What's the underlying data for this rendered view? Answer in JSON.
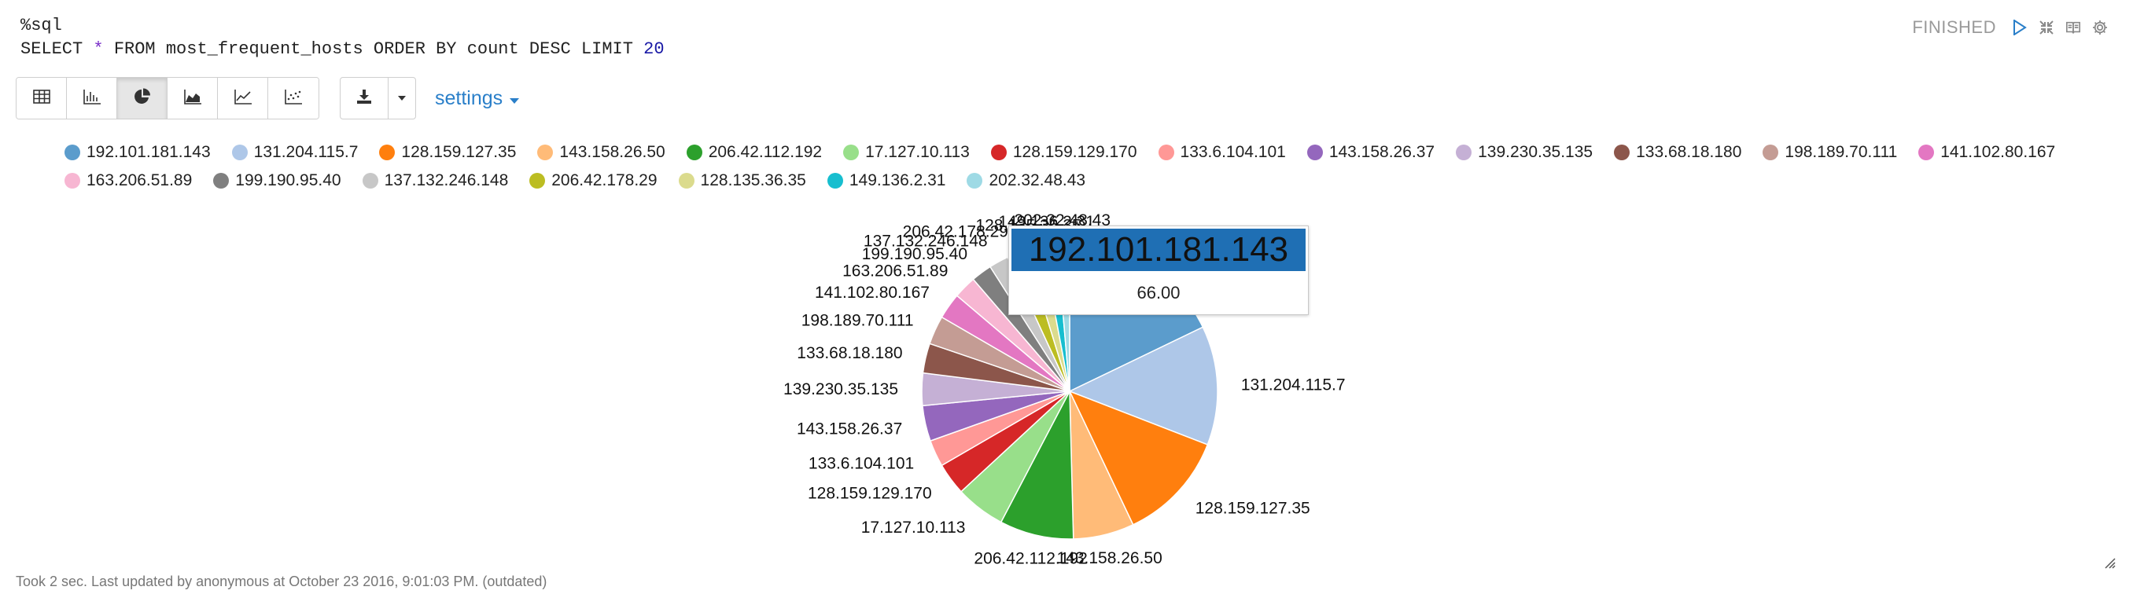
{
  "editor": {
    "line1": "%sql",
    "line2_prefix": "SELECT ",
    "line2_star": "*",
    "line2_mid": " FROM most_frequent_hosts ORDER BY count DESC LIMIT ",
    "line2_limit": "20"
  },
  "status": {
    "text": "FINISHED",
    "icons": [
      "play-icon",
      "collapse-icon",
      "book-icon",
      "gear-icon"
    ]
  },
  "toolbar": {
    "chart_buttons": [
      "table-icon",
      "bar-chart-icon",
      "pie-chart-icon",
      "area-chart-icon",
      "line-chart-icon",
      "scatter-chart-icon"
    ],
    "active": "pie-chart-icon",
    "download_icon": "download-icon",
    "settings_label": "settings"
  },
  "chart_data": {
    "type": "pie",
    "series": [
      {
        "label": "192.101.181.143",
        "value": 66.0,
        "color": "#5b9ccc"
      },
      {
        "label": "131.204.115.7",
        "value": 48.2,
        "color": "#aec7e8"
      },
      {
        "label": "128.159.127.35",
        "value": 44.6,
        "color": "#ff7f0e"
      },
      {
        "label": "143.158.26.50",
        "value": 24.6,
        "color": "#ffbb78"
      },
      {
        "label": "206.42.112.192",
        "value": 29.9,
        "color": "#2ca02c"
      },
      {
        "label": "17.127.10.113",
        "value": 20.1,
        "color": "#98df8a"
      },
      {
        "label": "128.159.129.170",
        "value": 13.0,
        "color": "#d62728"
      },
      {
        "label": "133.6.104.101",
        "value": 10.8,
        "color": "#ff9896"
      },
      {
        "label": "143.158.26.37",
        "value": 14.4,
        "color": "#9467bd"
      },
      {
        "label": "139.230.35.135",
        "value": 13.1,
        "color": "#c5b0d5"
      },
      {
        "label": "133.68.18.180",
        "value": 12.0,
        "color": "#8c564b"
      },
      {
        "label": "198.189.70.111",
        "value": 11.6,
        "color": "#c49c94"
      },
      {
        "label": "141.102.80.167",
        "value": 10.5,
        "color": "#e377c2"
      },
      {
        "label": "163.206.51.89",
        "value": 9.2,
        "color": "#f7b6d2"
      },
      {
        "label": "199.190.95.40",
        "value": 8.4,
        "color": "#7f7f7f"
      },
      {
        "label": "137.132.246.148",
        "value": 8.0,
        "color": "#c7c7c7"
      },
      {
        "label": "206.42.178.29",
        "value": 7.7,
        "color": "#bcbd22"
      },
      {
        "label": "128.135.36.35",
        "value": 6.8,
        "color": "#dbdb8d"
      },
      {
        "label": "149.136.2.31",
        "value": 5.9,
        "color": "#17becf"
      },
      {
        "label": "202.32.48.43",
        "value": 5.0,
        "color": "#9edae5"
      }
    ],
    "legend_placement": "top"
  },
  "tooltip": {
    "title": "192.101.181.143",
    "value": "66.00"
  },
  "footer": {
    "text": "Took 2 sec. Last updated by anonymous at October 23 2016, 9:01:03 PM. (outdated)"
  }
}
